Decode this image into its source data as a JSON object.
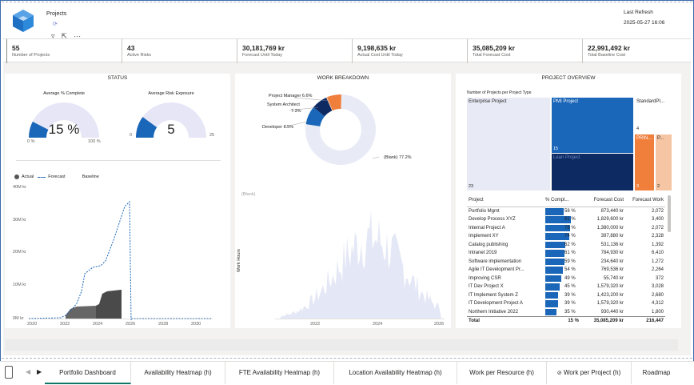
{
  "header": {
    "projects_label": "Projects",
    "filter_icon": "funnel-icon",
    "last_refresh_label": "Last Refresh",
    "last_refresh_value": "2025-05-27 16:06"
  },
  "kpis": [
    {
      "value": "55",
      "label": "Number of Projects"
    },
    {
      "value": "43",
      "label": "Active Risks"
    },
    {
      "value": "30,181,769 kr",
      "label": "Forecast Until Today"
    },
    {
      "value": "9,198,635 kr",
      "label": "Actual Cost Until Today"
    },
    {
      "value": "35,085,209 kr",
      "label": "Total Forecast Cost"
    },
    {
      "value": "22,991,492 kr",
      "label": "Total Baseline Cost"
    }
  ],
  "status": {
    "title": "STATUS",
    "gauge1": {
      "title": "Average % Complete",
      "value": "15 %",
      "min": "0 %",
      "max": "100 %",
      "fraction": 0.15
    },
    "gauge2": {
      "title": "Average Risk Exposure",
      "value": "5",
      "min": "0",
      "max": "25",
      "fraction": 0.2
    },
    "legend": {
      "actual": "Actual",
      "forecast": "Forecast",
      "baseline": "Baseline"
    },
    "y_ticks": [
      "40M kr",
      "30M kr",
      "20M kr",
      "10M kr",
      "0M kr"
    ],
    "x_ticks": [
      "2020",
      "2022",
      "2024",
      "2026",
      "2028",
      "2030"
    ]
  },
  "work": {
    "title": "WORK BREAKDOWN",
    "donut_labels": {
      "pm": "Project Manager 6.6%",
      "sa": "System Architect",
      "sa_pct": "7.3%",
      "dev": "Developer 8.5%",
      "blank": "(Blank) 77.2%"
    },
    "area_legend": "(Blank)",
    "y_axis_label": "Work Hours",
    "x_ticks": [
      "2022",
      "2024",
      "2026"
    ]
  },
  "overview": {
    "title": "PROJECT OVERVIEW",
    "treemap_title": "Number of Projects per Project Type",
    "treemap": [
      {
        "label": "Enterprise Project",
        "count": "23"
      },
      {
        "label": "PMI Project",
        "count": "15"
      },
      {
        "label": "Lean Project",
        "count": ""
      },
      {
        "label": "StandardPI...",
        "count": "4"
      },
      {
        "label": "PRIN...",
        "count": "3"
      },
      {
        "label": "P...",
        "count": "2"
      }
    ],
    "table": {
      "headers": [
        "Project",
        "% Compl...",
        "Forecast Cost",
        "Forecast Work"
      ],
      "rows": [
        [
          "Portfolio Mgmt",
          "58 %",
          "873,440 kr",
          "2,072",
          0.58
        ],
        [
          "Develop Process XYZ",
          "81 %",
          "1,829,600 kr",
          "3,400",
          0.81
        ],
        [
          "Internal Project A",
          "78 %",
          "1,380,000 kr",
          "2,072",
          0.78
        ],
        [
          "Implement XY",
          "74 %",
          "397,880 kr",
          "2,328",
          0.74
        ],
        [
          "Catalog publishing",
          "62 %",
          "531,136 kr",
          "1,392",
          0.62
        ],
        [
          "Intranet 2019",
          "61 %",
          "784,930 kr",
          "6,410",
          0.61
        ],
        [
          "Software implementation",
          "59 %",
          "234,640 kr",
          "1,272",
          0.59
        ],
        [
          "Agile IT Development Pr...",
          "54 %",
          "769,536 kr",
          "2,264",
          0.54
        ],
        [
          "Improving CSR",
          "49 %",
          "55,740 kr",
          "372",
          0.49
        ],
        [
          "IT Dev Project X",
          "45 %",
          "1,579,320 kr",
          "3,028",
          0.45
        ],
        [
          "IT Implement System Z",
          "39 %",
          "1,423,200 kr",
          "2,680",
          0.39
        ],
        [
          "IT Development Project A",
          "39 %",
          "1,579,320 kr",
          "4,312",
          0.39
        ],
        [
          "Northern Initiative 2022",
          "35 %",
          "930,440 kr",
          "1,800",
          0.35
        ]
      ],
      "total": [
        "Total",
        "15 %",
        "35,085,209 kr",
        "216,447"
      ]
    }
  },
  "tabs": [
    "Portfolio Dashboard",
    "Availability Heatmap (h)",
    "FTE Availability Heatmap (h)",
    "Location Availability Heatmap (h)",
    "Work per Resource (h)",
    "Work per Project (h)",
    "Roadmap"
  ],
  "colors": {
    "accent": "#1a66b8",
    "dark": "#0e2a63",
    "orange": "#f07f3c",
    "gauge_track": "#e8e8f8",
    "tab_active": "#117865"
  }
}
